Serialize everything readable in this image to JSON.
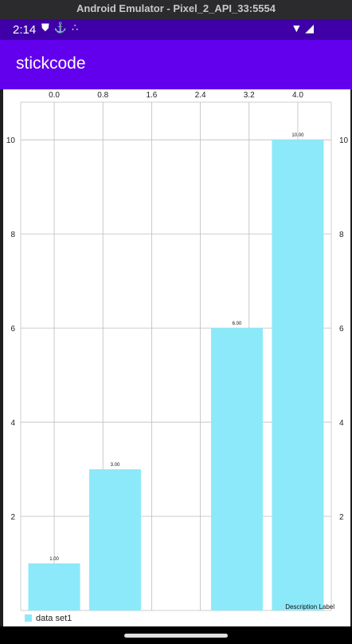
{
  "window": {
    "title": "Android Emulator - Pixel_2_API_33:5554"
  },
  "status_bar": {
    "time": "2:14",
    "icons_left": [
      "shield-icon",
      "usb-icon",
      "dots-icon"
    ],
    "icons_right": [
      "wifi-icon",
      "signal-icon"
    ]
  },
  "app_bar": {
    "title": "stickcode",
    "color": "#6200ee"
  },
  "chart": {
    "description": "Description Label",
    "legend_label": "data set1",
    "color": "#8ce9fa"
  },
  "chart_data": {
    "type": "bar",
    "x": [
      0.0,
      1.0,
      3.0,
      4.0
    ],
    "values": [
      1.0,
      3.0,
      6.0,
      10.0
    ],
    "value_labels": [
      "1.00",
      "3.00",
      "6.00",
      "10.00"
    ],
    "x_ticks": [
      "0.0",
      "0.8",
      "1.6",
      "2.4",
      "3.2",
      "4.0"
    ],
    "y_ticks": [
      "2",
      "4",
      "6",
      "8",
      "10"
    ],
    "ylim": [
      0,
      10.8
    ],
    "series": [
      {
        "name": "data set1",
        "values": [
          1.0,
          3.0,
          6.0,
          10.0
        ]
      }
    ],
    "grid": true,
    "legend_position": "bottom-left"
  }
}
